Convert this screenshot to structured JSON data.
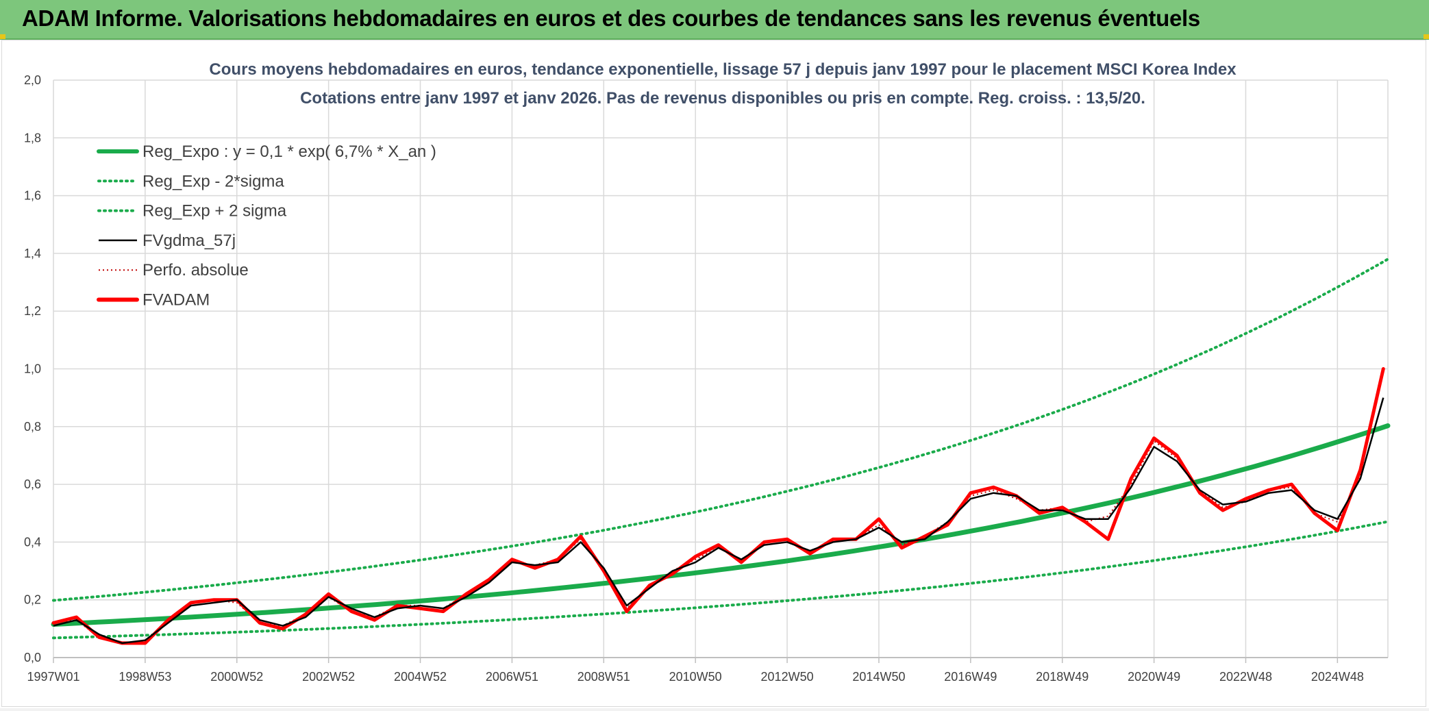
{
  "header": {
    "title": "ADAM Informe. Valorisations hebdomadaires en euros et des courbes de tendances sans les revenus éventuels"
  },
  "colors": {
    "header_bg": "#7dc67c",
    "trend": "#1aab4b",
    "smooth": "#000000",
    "fvadam": "#ff0000",
    "perfo": "#c00000",
    "grid": "#d9d9d9"
  },
  "chart_data": {
    "type": "line",
    "title_line1": "Cours moyens hebdomadaires en euros, tendance exponentielle, lissage 57 j depuis janv 1997 pour le placement MSCI Korea Index",
    "title_line2": "Cotations entre janv 1997 et janv 2026. Pas de revenus disponibles ou pris en compte. Reg. croiss. : 13,5/20.",
    "xlabel": "",
    "ylabel": "",
    "xlim": [
      1997.0,
      2026.1
    ],
    "ylim": [
      0,
      2.0
    ],
    "y_ticks": [
      "0,0",
      "0,2",
      "0,4",
      "0,6",
      "0,8",
      "1,0",
      "1,2",
      "1,4",
      "1,6",
      "1,8",
      "2,0"
    ],
    "x_ticks": [
      {
        "label": "1997W01",
        "x": 1997.0
      },
      {
        "label": "1998W53",
        "x": 1999.0
      },
      {
        "label": "2000W52",
        "x": 2001.0
      },
      {
        "label": "2002W52",
        "x": 2003.0
      },
      {
        "label": "2004W52",
        "x": 2005.0
      },
      {
        "label": "2006W51",
        "x": 2007.0
      },
      {
        "label": "2008W51",
        "x": 2009.0
      },
      {
        "label": "2010W50",
        "x": 2011.0
      },
      {
        "label": "2012W50",
        "x": 2013.0
      },
      {
        "label": "2014W50",
        "x": 2015.0
      },
      {
        "label": "2016W49",
        "x": 2017.0
      },
      {
        "label": "2018W49",
        "x": 2019.0
      },
      {
        "label": "2020W49",
        "x": 2021.0
      },
      {
        "label": "2022W48",
        "x": 2023.0
      },
      {
        "label": "2024W48",
        "x": 2025.0
      }
    ],
    "grid": true,
    "legend_position": "top-left",
    "legend": [
      "Reg_Expo : y = 0,1 * exp( 6,7% *  X_an )",
      "Reg_Exp - 2*sigma",
      "Reg_Exp + 2 sigma",
      "FVgdma_57j",
      "Perfo. absolue",
      "FVADAM"
    ],
    "series": [
      {
        "name": "Reg_Expo : y = 0,1 * exp( 6,7% *  X_an )",
        "style": "solid-thick",
        "x": [
          1997.0,
          2001.0,
          2005.0,
          2009.0,
          2013.0,
          2017.0,
          2021.0,
          2025.0,
          2026.1
        ],
        "values": [
          0.115,
          0.15,
          0.196,
          0.257,
          0.335,
          0.438,
          0.572,
          0.747,
          0.803
        ]
      },
      {
        "name": "Reg_Exp - 2*sigma",
        "style": "dotted",
        "x": [
          1997.0,
          2001.0,
          2005.0,
          2009.0,
          2013.0,
          2017.0,
          2021.0,
          2025.0,
          2026.1
        ],
        "values": [
          0.068,
          0.088,
          0.115,
          0.151,
          0.197,
          0.257,
          0.336,
          0.438,
          0.471
        ]
      },
      {
        "name": "Reg_Exp + 2 sigma",
        "style": "dotted",
        "x": [
          1997.0,
          2001.0,
          2005.0,
          2009.0,
          2013.0,
          2017.0,
          2021.0,
          2025.0,
          2026.1
        ],
        "values": [
          0.198,
          0.259,
          0.338,
          0.441,
          0.576,
          0.752,
          0.982,
          1.283,
          1.38
        ]
      },
      {
        "name": "FVgdma_57j",
        "style": "solid-thin",
        "x": [
          1997.0,
          1997.5,
          1998.0,
          1998.5,
          1999.0,
          1999.5,
          2000.0,
          2000.5,
          2001.0,
          2001.5,
          2002.0,
          2002.5,
          2003.0,
          2003.5,
          2004.0,
          2004.5,
          2005.0,
          2005.5,
          2006.0,
          2006.5,
          2007.0,
          2007.5,
          2008.0,
          2008.5,
          2009.0,
          2009.5,
          2010.0,
          2010.5,
          2011.0,
          2011.5,
          2012.0,
          2012.5,
          2013.0,
          2013.5,
          2014.0,
          2014.5,
          2015.0,
          2015.5,
          2016.0,
          2016.5,
          2017.0,
          2017.5,
          2018.0,
          2018.5,
          2019.0,
          2019.5,
          2020.0,
          2020.5,
          2021.0,
          2021.5,
          2022.0,
          2022.5,
          2023.0,
          2023.5,
          2024.0,
          2024.5,
          2025.0,
          2025.5,
          2026.0
        ],
        "values": [
          0.11,
          0.13,
          0.08,
          0.05,
          0.06,
          0.12,
          0.18,
          0.19,
          0.2,
          0.13,
          0.11,
          0.14,
          0.21,
          0.17,
          0.14,
          0.17,
          0.18,
          0.17,
          0.21,
          0.26,
          0.33,
          0.32,
          0.33,
          0.4,
          0.31,
          0.18,
          0.24,
          0.3,
          0.33,
          0.38,
          0.34,
          0.39,
          0.4,
          0.37,
          0.4,
          0.41,
          0.45,
          0.4,
          0.41,
          0.47,
          0.55,
          0.57,
          0.56,
          0.51,
          0.51,
          0.48,
          0.48,
          0.59,
          0.73,
          0.68,
          0.58,
          0.53,
          0.54,
          0.57,
          0.58,
          0.51,
          0.48,
          0.62,
          0.9
        ]
      },
      {
        "name": "Perfo. absolue",
        "style": "dotted-thin",
        "x": [
          1997.0,
          1997.5,
          1998.0,
          1998.5,
          1999.0,
          1999.5,
          2000.0,
          2000.5,
          2001.0,
          2001.5,
          2002.0,
          2002.5,
          2003.0,
          2003.5,
          2004.0,
          2004.5,
          2005.0,
          2005.5,
          2006.0,
          2006.5,
          2007.0,
          2007.5,
          2008.0,
          2008.5,
          2009.0,
          2009.5,
          2010.0,
          2010.5,
          2011.0,
          2011.5,
          2012.0,
          2012.5,
          2013.0,
          2013.5,
          2014.0,
          2014.5,
          2015.0,
          2015.5,
          2016.0,
          2016.5,
          2017.0,
          2017.5,
          2018.0,
          2018.5,
          2019.0,
          2019.5,
          2020.0,
          2020.5,
          2021.0,
          2021.5,
          2022.0,
          2022.5,
          2023.0,
          2023.5,
          2024.0,
          2024.5,
          2025.0,
          2025.5,
          2026.0
        ],
        "values": [
          0.12,
          0.13,
          0.07,
          0.05,
          0.05,
          0.13,
          0.19,
          0.2,
          0.19,
          0.12,
          0.11,
          0.15,
          0.21,
          0.16,
          0.14,
          0.18,
          0.18,
          0.17,
          0.22,
          0.27,
          0.33,
          0.32,
          0.34,
          0.41,
          0.3,
          0.17,
          0.25,
          0.3,
          0.34,
          0.38,
          0.34,
          0.39,
          0.4,
          0.37,
          0.4,
          0.41,
          0.46,
          0.39,
          0.42,
          0.47,
          0.56,
          0.58,
          0.55,
          0.51,
          0.52,
          0.47,
          0.49,
          0.6,
          0.75,
          0.69,
          0.58,
          0.52,
          0.54,
          0.58,
          0.59,
          0.5,
          0.47,
          0.63,
          1.0
        ]
      },
      {
        "name": "FVADAM",
        "style": "solid-thick",
        "x": [
          1997.0,
          1997.5,
          1998.0,
          1998.5,
          1999.0,
          1999.5,
          2000.0,
          2000.5,
          2001.0,
          2001.5,
          2002.0,
          2002.5,
          2003.0,
          2003.5,
          2004.0,
          2004.5,
          2005.0,
          2005.5,
          2006.0,
          2006.5,
          2007.0,
          2007.5,
          2008.0,
          2008.5,
          2009.0,
          2009.5,
          2010.0,
          2010.5,
          2011.0,
          2011.5,
          2012.0,
          2012.5,
          2013.0,
          2013.5,
          2014.0,
          2014.5,
          2015.0,
          2015.5,
          2016.0,
          2016.5,
          2017.0,
          2017.5,
          2018.0,
          2018.5,
          2019.0,
          2019.5,
          2020.0,
          2020.5,
          2021.0,
          2021.5,
          2022.0,
          2022.5,
          2023.0,
          2023.5,
          2024.0,
          2024.5,
          2025.0,
          2025.5,
          2026.0
        ],
        "values": [
          0.12,
          0.14,
          0.07,
          0.05,
          0.05,
          0.13,
          0.19,
          0.2,
          0.2,
          0.12,
          0.1,
          0.15,
          0.22,
          0.16,
          0.13,
          0.18,
          0.17,
          0.16,
          0.22,
          0.27,
          0.34,
          0.31,
          0.34,
          0.42,
          0.3,
          0.16,
          0.25,
          0.29,
          0.35,
          0.39,
          0.33,
          0.4,
          0.41,
          0.36,
          0.41,
          0.41,
          0.48,
          0.38,
          0.42,
          0.46,
          0.57,
          0.59,
          0.56,
          0.5,
          0.52,
          0.47,
          0.41,
          0.62,
          0.76,
          0.7,
          0.57,
          0.51,
          0.55,
          0.58,
          0.6,
          0.5,
          0.44,
          0.65,
          1.0
        ]
      }
    ]
  }
}
